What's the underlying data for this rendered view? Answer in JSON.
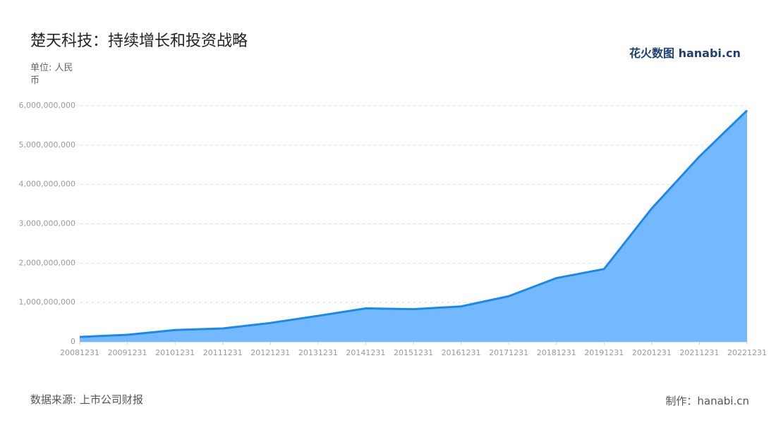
{
  "chart_data": {
    "type": "area",
    "title": "楚天科技：持续增长和投资战略",
    "unit": "单位: 人民币",
    "source": "数据来源: 上市公司财报",
    "credit": "制作：hanabi.cn",
    "logo": "花火数图 hanabi.cn",
    "categories": [
      "20081231",
      "20091231",
      "20101231",
      "20111231",
      "20121231",
      "20131231",
      "20141231",
      "20151231",
      "20161231",
      "20171231",
      "20181231",
      "20191231",
      "20201231",
      "20211231",
      "20221231"
    ],
    "values": [
      125000000,
      180000000,
      300000000,
      340000000,
      480000000,
      660000000,
      850000000,
      830000000,
      900000000,
      1160000000,
      1620000000,
      1850000000,
      3390000000,
      4710000000,
      5880000000
    ],
    "color": "#1e88e5",
    "fill_color": "#74b9ff",
    "ylim": [
      0,
      6000000000
    ],
    "yticks": [
      0,
      {
        "value": 1000000000,
        "label": "1,000,000,000"
      },
      {
        "value": 2000000000,
        "label": "2,000,000,000"
      },
      {
        "value": 3000000000,
        "label": "3,000,000,000"
      },
      {
        "value": 4000000000,
        "label": "4,000,000,000"
      },
      {
        "value": 5000000000,
        "label": "5,000,000,000"
      },
      {
        "value": 6000000000,
        "label": "6,000,000,000"
      }
    ],
    "grid": true
  }
}
